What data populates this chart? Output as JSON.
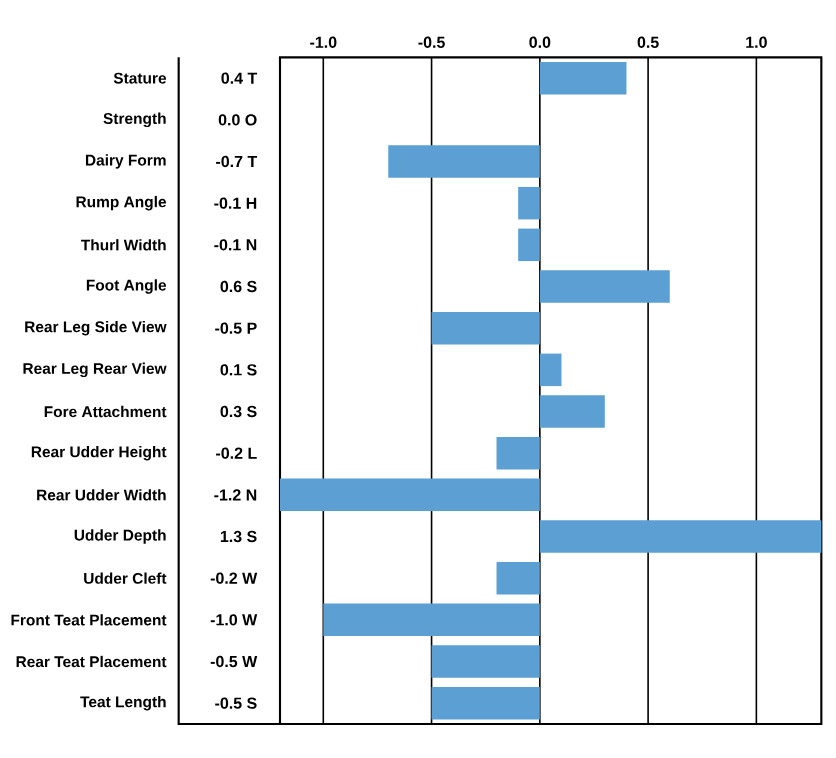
{
  "chart_data": {
    "type": "bar",
    "orientation": "horizontal",
    "categories": [
      "Stature",
      "Strength",
      "Dairy Form",
      "Rump Angle",
      "Thurl Width",
      "Foot Angle",
      "Rear Leg Side View",
      "Rear Leg Rear View",
      "Fore Attachment",
      "Rear Udder Height",
      "Rear Udder Width",
      "Udder Depth",
      "Udder Cleft",
      "Front Teat Placement",
      "Rear Teat Placement",
      "Teat Length"
    ],
    "values": [
      0.4,
      0.0,
      -0.7,
      -0.1,
      -0.1,
      0.6,
      -0.5,
      0.1,
      0.3,
      -0.2,
      -1.2,
      1.3,
      -0.2,
      -1.0,
      -0.5,
      -0.5
    ],
    "value_labels": [
      "0.4 T",
      "0.0 O",
      "-0.7 T",
      "-0.1 H",
      "-0.1 N",
      "0.6 S",
      "-0.5 P",
      "0.1 S",
      "0.3 S",
      "-0.2 L",
      "-1.2 N",
      "1.3 S",
      "-0.2 W",
      "-1.0 W",
      "-0.5 W",
      "-0.5 S"
    ],
    "color": "#5b9fd3",
    "xlim": [
      -1.2,
      1.3
    ],
    "xticks": [
      {
        "value": -1.0,
        "label": "-1.0"
      },
      {
        "value": -0.5,
        "label": "-0.5"
      },
      {
        "value": 0.0,
        "label": "0.0"
      },
      {
        "value": 0.5,
        "label": "0.5"
      },
      {
        "value": 1.0,
        "label": "1.0"
      }
    ],
    "grid": "x"
  }
}
